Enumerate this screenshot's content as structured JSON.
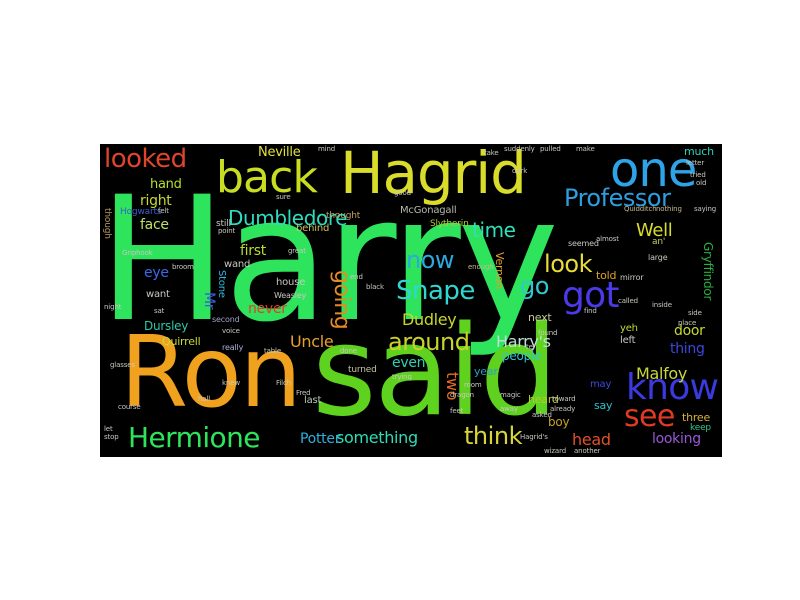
{
  "image": {
    "background": "#000000",
    "page_background": "#ffffff",
    "words": [
      {
        "text": "Harry",
        "color": "#2ee45c"
      },
      {
        "text": "Ron",
        "color": "#f0a21e"
      },
      {
        "text": "said",
        "color": "#5ed21e"
      },
      {
        "text": "Hagrid",
        "color": "#d9dc2a"
      },
      {
        "text": "back",
        "color": "#c8dc22"
      },
      {
        "text": "one",
        "color": "#2ea4e8"
      },
      {
        "text": "Hermione",
        "color": "#2ee45a"
      },
      {
        "text": "know",
        "color": "#3a3ae0"
      },
      {
        "text": "see",
        "color": "#e03a22"
      },
      {
        "text": "got",
        "color": "#4a3ae8"
      },
      {
        "text": "Professor",
        "color": "#2e9ee0"
      },
      {
        "text": "looked",
        "color": "#e0442a"
      },
      {
        "text": "Snape",
        "color": "#2ed8d0"
      },
      {
        "text": "Dumbledore",
        "color": "#2edcc0"
      },
      {
        "text": "around",
        "color": "#c8d22a"
      },
      {
        "text": "now",
        "color": "#2ea8e0"
      },
      {
        "text": "think",
        "color": "#d8d43a"
      },
      {
        "text": "look",
        "color": "#e8dc3a"
      },
      {
        "text": "go",
        "color": "#2ec8d0"
      },
      {
        "text": "time",
        "color": "#2ee0b8"
      },
      {
        "text": "going",
        "color": "#e88a22"
      },
      {
        "text": "Uncle",
        "color": "#e8a02a"
      },
      {
        "text": "Dudley",
        "color": "#c8d82a"
      },
      {
        "text": "Harry's",
        "color": "#bde0d6"
      },
      {
        "text": "Well",
        "color": "#d8dc2a"
      },
      {
        "text": "Malfoy",
        "color": "#c8d83a"
      },
      {
        "text": "something",
        "color": "#2edcb8"
      },
      {
        "text": "head",
        "color": "#e0502a"
      },
      {
        "text": "Potter",
        "color": "#2eb0e0"
      },
      {
        "text": "looking",
        "color": "#9a58d8"
      },
      {
        "text": "right",
        "color": "#c8d832"
      },
      {
        "text": "face",
        "color": "#bde06a"
      },
      {
        "text": "hand",
        "color": "#b8dc32"
      },
      {
        "text": "Neville",
        "color": "#e0e040"
      },
      {
        "text": "first",
        "color": "#b8dc32"
      },
      {
        "text": "eye",
        "color": "#3a6ae8"
      },
      {
        "text": "never",
        "color": "#e83a28"
      },
      {
        "text": "door",
        "color": "#c8d832"
      },
      {
        "text": "thing",
        "color": "#3a48e0"
      },
      {
        "text": "two",
        "color": "#e86a28"
      },
      {
        "text": "even",
        "color": "#2ed0b0"
      },
      {
        "text": "boy",
        "color": "#c8a028"
      },
      {
        "text": "Mr",
        "color": "#3a5ae0"
      },
      {
        "text": "Dursley",
        "color": "#2ec8a8"
      },
      {
        "text": "Quirrell",
        "color": "#c8d838"
      },
      {
        "text": "Vernon",
        "color": "#e0a028"
      },
      {
        "text": "McGonagall",
        "color": "#b8b8b0"
      },
      {
        "text": "Gryffindor",
        "color": "#28b040"
      },
      {
        "text": "people",
        "color": "#2ec8d0"
      },
      {
        "text": "year",
        "color": "#2ea0c8"
      },
      {
        "text": "next",
        "color": "#c8c8a0"
      },
      {
        "text": "told",
        "color": "#e0a028"
      },
      {
        "text": "heard",
        "color": "#b8c838"
      },
      {
        "text": "three",
        "color": "#d8b038"
      },
      {
        "text": "keep",
        "color": "#2ec890"
      },
      {
        "text": "much",
        "color": "#2ed0b8"
      },
      {
        "text": "say",
        "color": "#2ec0d0"
      },
      {
        "text": "may",
        "color": "#3a4ae0"
      },
      {
        "text": "yeh",
        "color": "#c0d838"
      },
      {
        "text": "left",
        "color": "#c8c8c8"
      },
      {
        "text": "last",
        "color": "#b8c8b8"
      },
      {
        "text": "want",
        "color": "#c8c8c0"
      },
      {
        "text": "wand",
        "color": "#c8c8c0"
      },
      {
        "text": "Stone",
        "color": "#2eb8e0"
      },
      {
        "text": "house",
        "color": "#c8c8c0"
      },
      {
        "text": "behind",
        "color": "#c8c060"
      },
      {
        "text": "thought",
        "color": "#c0a060"
      },
      {
        "text": "still",
        "color": "#c8c8c0"
      },
      {
        "text": "Slytherin",
        "color": "#b8c838"
      },
      {
        "text": "turned",
        "color": "#c8c0a0"
      },
      {
        "text": "seemed",
        "color": "#c8c8c0"
      },
      {
        "text": "Weasley",
        "color": "#c8c8c0"
      },
      {
        "text": "second",
        "color": "#a0a0c8"
      },
      {
        "text": "really",
        "color": "#a8b0d8"
      },
      {
        "text": "an'",
        "color": "#c8c860"
      },
      {
        "text": "mirror",
        "color": "#c8c8c0"
      },
      {
        "text": "large",
        "color": "#c8c8c0"
      },
      {
        "text": "Hogwarts",
        "color": "#3a60c8"
      },
      {
        "text": "though",
        "color": "#b09858"
      },
      {
        "text": "felt",
        "color": "#c8c8c0"
      },
      {
        "text": "sat",
        "color": "#c8c8c0"
      },
      {
        "text": "found",
        "color": "#c8c8c0"
      },
      {
        "text": "Filch",
        "color": "#c8c8c0"
      },
      {
        "text": "Quidditch",
        "color": "#c8b890"
      },
      {
        "text": "nothing",
        "color": "#c8b890"
      },
      {
        "text": "trying",
        "color": "#c8c8c0"
      },
      {
        "text": "Fred",
        "color": "#c8c8c0"
      },
      {
        "text": "magic",
        "color": "#c8c8c0"
      },
      {
        "text": "knew",
        "color": "#c8c8c0"
      },
      {
        "text": "feet",
        "color": "#c8c8c0"
      },
      {
        "text": "enough",
        "color": "#c8b890"
      },
      {
        "text": "great",
        "color": "#c8c8c0"
      },
      {
        "text": "inside",
        "color": "#c8c8c0"
      },
      {
        "text": "room",
        "color": "#c8c8c0"
      },
      {
        "text": "end",
        "color": "#c8c8c0"
      },
      {
        "text": "voice",
        "color": "#c8c8c0"
      },
      {
        "text": "mind",
        "color": "#c8c8c0"
      },
      {
        "text": "good",
        "color": "#c8c8c0"
      },
      {
        "text": "stop",
        "color": "#c8c8c0"
      },
      {
        "text": "let",
        "color": "#c8c8c0"
      },
      {
        "text": "black",
        "color": "#c8c8c0"
      },
      {
        "text": "night",
        "color": "#c8c8c0"
      },
      {
        "text": "ter",
        "color": "#c8c8c0"
      },
      {
        "text": "done",
        "color": "#c8c8c0"
      },
      {
        "text": "asked",
        "color": "#c8c8c0"
      },
      {
        "text": "suddenly",
        "color": "#c8c8c0"
      },
      {
        "text": "pulled",
        "color": "#c8c8c0"
      },
      {
        "text": "make",
        "color": "#c8c8c0"
      },
      {
        "text": "take",
        "color": "#c8c8c0"
      },
      {
        "text": "dark",
        "color": "#c8c8c0"
      },
      {
        "text": "letter",
        "color": "#c8c8c0"
      },
      {
        "text": "tried",
        "color": "#c8c8c0"
      },
      {
        "text": "old",
        "color": "#c8c8c0"
      },
      {
        "text": "saying",
        "color": "#c8c8c0"
      },
      {
        "text": "almost",
        "color": "#c8c8c0"
      },
      {
        "text": "called",
        "color": "#c8c8c0"
      },
      {
        "text": "find",
        "color": "#c8c8c0"
      },
      {
        "text": "Griphook",
        "color": "#c8c8c0"
      },
      {
        "text": "point",
        "color": "#c8c8c0"
      },
      {
        "text": "broom",
        "color": "#c8c8c0"
      },
      {
        "text": "glasses",
        "color": "#c8c8c0"
      },
      {
        "text": "table",
        "color": "#c8c8c0"
      },
      {
        "text": "another",
        "color": "#c8c8c0"
      },
      {
        "text": "wizard",
        "color": "#c8c8c0"
      },
      {
        "text": "dragon",
        "color": "#c8c8c0"
      },
      {
        "text": "course",
        "color": "#c8c8c0"
      },
      {
        "text": "hall",
        "color": "#c8c8c0"
      },
      {
        "text": "Hagrid's",
        "color": "#c8c8c0"
      },
      {
        "text": "sure",
        "color": "#c8c8c0"
      },
      {
        "text": "away",
        "color": "#c8c8c0"
      },
      {
        "text": "toward",
        "color": "#c8c8c0"
      },
      {
        "text": "already",
        "color": "#c8c8c0"
      },
      {
        "text": "place",
        "color": "#c8c8c0"
      },
      {
        "text": "side",
        "color": "#c8c8c0"
      }
    ]
  }
}
